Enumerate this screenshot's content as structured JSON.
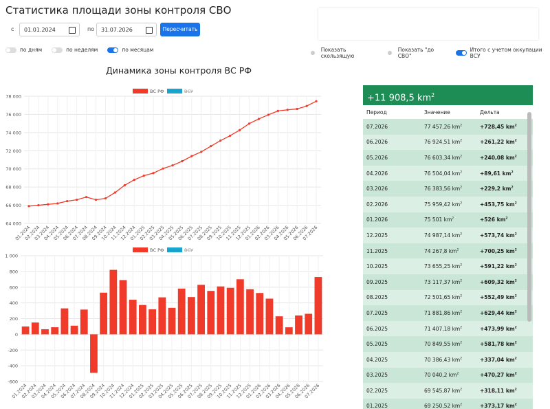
{
  "header": {
    "title": "Статистика площади зоны контроля СВО"
  },
  "controls": {
    "from_label": "с",
    "from_date": "01.01.2024",
    "to_label": "по",
    "to_date": "31.07.2026",
    "button": "Пересчитать",
    "toggles": [
      {
        "label": "по дням",
        "on": false
      },
      {
        "label": "по неделям",
        "on": false
      },
      {
        "label": "по месяцам",
        "on": true
      }
    ],
    "options": [
      {
        "label": "Показать скользящую",
        "on": false
      },
      {
        "label": "Показать \"до СВО\"",
        "on": false
      },
      {
        "label": "Итого с учетом оккупации ВСУ",
        "on": true
      }
    ]
  },
  "chart_title": "Динамика зоны контроля ВС РФ",
  "chart_data": [
    {
      "type": "line",
      "categories": [
        "01.2024",
        "02.2024",
        "03.2024",
        "04.2024",
        "05.2024",
        "06.2024",
        "07.2024",
        "08.2024",
        "09.2024",
        "10.2024",
        "11.2024",
        "12.2024",
        "01.2025",
        "02.2025",
        "03.2025",
        "04.2025",
        "05.2025",
        "06.2025",
        "07.2025",
        "08.2025",
        "09.2025",
        "10.2025",
        "11.2025",
        "12.2025",
        "01.2026",
        "02.2026",
        "03.2026",
        "04.2026",
        "05.2026",
        "06.2026",
        "07.2026"
      ],
      "series": [
        {
          "name": "ВС РФ",
          "color": "#f03a2a",
          "values": [
            65900,
            66000,
            66100,
            66200,
            66450,
            66600,
            66900,
            66600,
            66750,
            67400,
            68200,
            68800,
            69250.52,
            69545.87,
            70040.2,
            70386.43,
            70849.55,
            71407.18,
            71881.86,
            72501.65,
            73117.37,
            73655.25,
            74267.8,
            74987.14,
            75501,
            75959.42,
            76383.56,
            76504.04,
            76603.34,
            76924.51,
            77457.26
          ]
        },
        {
          "name": "ВСУ",
          "color": "#1aa3cc",
          "hidden": true
        }
      ],
      "ylim": [
        64000,
        78000
      ],
      "yticks": [
        {
          "value": 64000,
          "label": "64 000"
        },
        {
          "value": 66000,
          "label": "66 000"
        },
        {
          "value": 68000,
          "label": "68 000"
        },
        {
          "value": 70000,
          "label": "70 000"
        },
        {
          "value": 72000,
          "label": "72 000"
        },
        {
          "value": 74000,
          "label": "74 000"
        },
        {
          "value": 76000,
          "label": "76 000"
        },
        {
          "value": 78000,
          "label": "78 000"
        }
      ],
      "grid": true
    },
    {
      "type": "bar",
      "categories": [
        "01.2024",
        "02.2024",
        "03.2024",
        "04.2024",
        "05.2024",
        "06.2024",
        "07.2024",
        "08.2024",
        "09.2024",
        "10.2024",
        "11.2024",
        "12.2024",
        "01.2025",
        "02.2025",
        "03.2025",
        "04.2025",
        "05.2025",
        "06.2025",
        "07.2025",
        "08.2025",
        "09.2025",
        "10.2025",
        "11.2025",
        "12.2025",
        "01.2026",
        "02.2026",
        "03.2026",
        "04.2026",
        "05.2026",
        "06.2026",
        "07.2026"
      ],
      "series": [
        {
          "name": "ВС РФ",
          "color": "#f03a2a",
          "values": [
            100,
            150,
            65,
            90,
            330,
            110,
            315,
            -490,
            530,
            820,
            690,
            440,
            373.17,
            318.11,
            470.27,
            337.04,
            581.78,
            473.99,
            629.44,
            552.49,
            609.32,
            591.22,
            700.25,
            573.74,
            526,
            453.75,
            229.2,
            89.61,
            240.08,
            261.22,
            728.45
          ]
        },
        {
          "name": "ВСУ",
          "color": "#1aa3cc",
          "hidden": true
        }
      ],
      "ylim": [
        -600,
        1000
      ],
      "yticks": [
        -600,
        -400,
        -200,
        0,
        200,
        400,
        600,
        800,
        {
          "value": 1000,
          "label": "1 000"
        }
      ],
      "grid": true
    }
  ],
  "table": {
    "total": "+11 908,5",
    "unit": "km",
    "unit_exp": "2",
    "columns": [
      "Период",
      "Значение",
      "Дельта"
    ],
    "rows": [
      [
        "07.2026",
        "77 457,26",
        "+728,45"
      ],
      [
        "06.2026",
        "76 924,51",
        "+261,22"
      ],
      [
        "05.2026",
        "76 603,34",
        "+240,08"
      ],
      [
        "04.2026",
        "76 504,04",
        "+89,61"
      ],
      [
        "03.2026",
        "76 383,56",
        "+229,2"
      ],
      [
        "02.2026",
        "75 959,42",
        "+453,75"
      ],
      [
        "01.2026",
        "75 501",
        "+526"
      ],
      [
        "12.2025",
        "74 987,14",
        "+573,74"
      ],
      [
        "11.2025",
        "74 267,8",
        "+700,25"
      ],
      [
        "10.2025",
        "73 655,25",
        "+591,22"
      ],
      [
        "09.2025",
        "73 117,37",
        "+609,32"
      ],
      [
        "08.2025",
        "72 501,65",
        "+552,49"
      ],
      [
        "07.2025",
        "71 881,86",
        "+629,44"
      ],
      [
        "06.2025",
        "71 407,18",
        "+473,99"
      ],
      [
        "05.2025",
        "70 849,55",
        "+581,78"
      ],
      [
        "04.2025",
        "70 386,43",
        "+337,04"
      ],
      [
        "03.2025",
        "70 040,2",
        "+470,27"
      ],
      [
        "02.2025",
        "69 545,87",
        "+318,11"
      ],
      [
        "01.2025",
        "69 250,52",
        "+373,17"
      ]
    ]
  }
}
